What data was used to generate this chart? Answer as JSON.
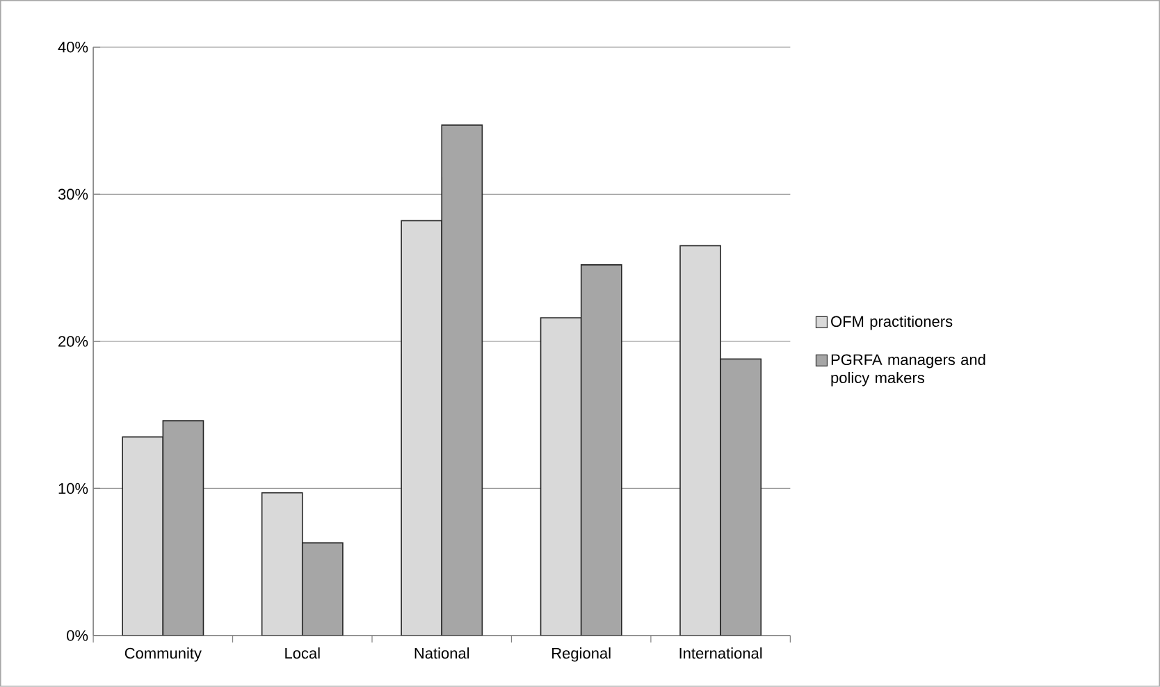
{
  "chart_data": {
    "type": "bar",
    "categories": [
      "Community",
      "Local",
      "National",
      "Regional",
      "International"
    ],
    "series": [
      {
        "name": "OFM practitioners",
        "color": "#d9d9d9",
        "values": [
          13.5,
          9.7,
          28.2,
          21.6,
          26.5
        ]
      },
      {
        "name": "PGRFA managers and policy makers",
        "color": "#a6a6a6",
        "values": [
          14.6,
          6.3,
          34.7,
          25.2,
          18.8
        ]
      }
    ],
    "ylim": [
      0,
      40
    ],
    "yticks": [
      {
        "value": 0,
        "label": "0%"
      },
      {
        "value": 10,
        "label": "10%"
      },
      {
        "value": 20,
        "label": "20%"
      },
      {
        "value": 30,
        "label": "30%"
      },
      {
        "value": 40,
        "label": "40%"
      }
    ],
    "grid": "y",
    "legend": "right"
  }
}
